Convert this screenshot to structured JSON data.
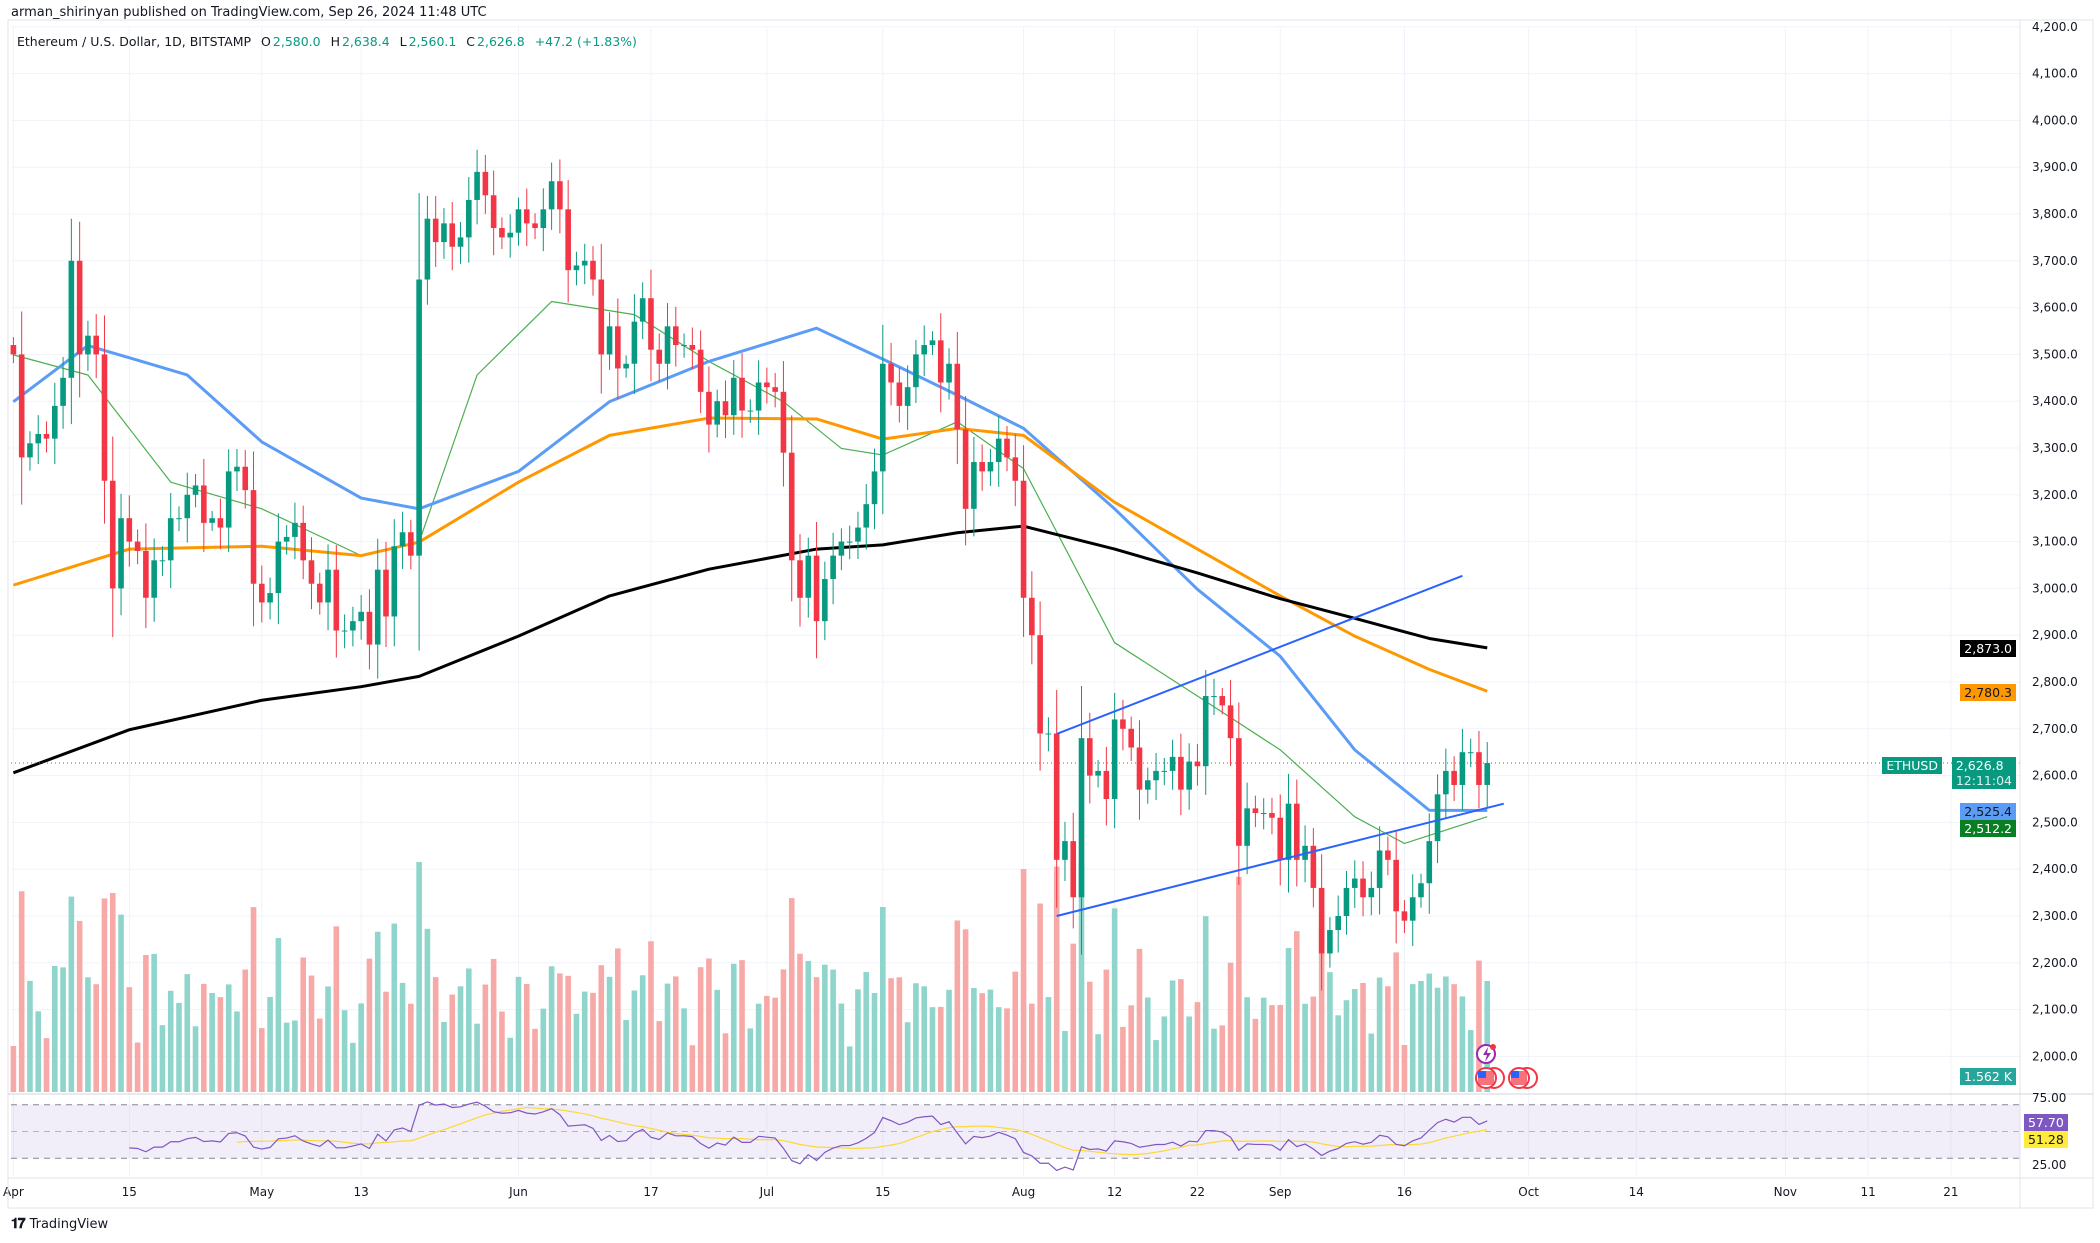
{
  "header": {
    "published": "arman_shirinyan published on TradingView.com, Sep 26, 2024 11:48 UTC"
  },
  "legend": {
    "symbol": "Ethereum / U.S. Dollar, 1D, BITSTAMP",
    "o_label": "O",
    "o": "2,580.0",
    "h_label": "H",
    "h": "2,638.4",
    "l_label": "L",
    "l": "2,560.1",
    "c_label": "C",
    "c": "2,626.8",
    "change": "+47.2 (+1.83%)"
  },
  "footer": {
    "brand": "TradingView",
    "logo": "TV"
  },
  "colors": {
    "up": "#089981",
    "down": "#f23645",
    "ma20": "#4caf50",
    "ma50": "#5b9cf6",
    "ma100": "#ff9800",
    "ma200": "#000000",
    "trend": "#2962ff",
    "rsi": "#7e57c2",
    "rsi_ma": "#fdd835"
  },
  "price_tags": {
    "ma200": "2,873.0",
    "ma100": "2,780.3",
    "symbol": "ETHUSD",
    "last": "2,626.8",
    "countdown": "12:11:04",
    "ma50": "2,525.4",
    "ma20": "2,512.2",
    "volume": "1.562 K",
    "rsi": "57.70",
    "rsi_ma": "51.28"
  },
  "chart_data": {
    "type": "candlestick",
    "symbol": "ETHUSD",
    "timeframe": "1D",
    "start_date": "2024-04-01",
    "closes": [
      3500,
      3280,
      3310,
      3330,
      3320,
      3390,
      3450,
      3700,
      3500,
      3540,
      3500,
      3230,
      3000,
      3150,
      3100,
      3080,
      2980,
      3060,
      3060,
      3150,
      3150,
      3200,
      3220,
      3140,
      3150,
      3130,
      3250,
      3260,
      3210,
      3010,
      2970,
      2990,
      3100,
      3110,
      3140,
      3060,
      3010,
      2970,
      3040,
      2910,
      2910,
      2930,
      2950,
      2880,
      3040,
      2940,
      3090,
      3120,
      3070,
      3660,
      3790,
      3740,
      3780,
      3730,
      3750,
      3830,
      3890,
      3840,
      3770,
      3750,
      3760,
      3810,
      3780,
      3770,
      3810,
      3870,
      3810,
      3680,
      3690,
      3700,
      3660,
      3500,
      3560,
      3470,
      3480,
      3570,
      3620,
      3510,
      3480,
      3560,
      3520,
      3520,
      3510,
      3420,
      3350,
      3400,
      3370,
      3450,
      3380,
      3380,
      3440,
      3430,
      3420,
      3290,
      3060,
      2980,
      3070,
      2930,
      3020,
      3070,
      3100,
      3100,
      3130,
      3180,
      3250,
      3480,
      3440,
      3390,
      3430,
      3500,
      3520,
      3530,
      3440,
      3480,
      3340,
      3170,
      3270,
      3250,
      3270,
      3320,
      3280,
      3230,
      2980,
      2900,
      2690,
      2690,
      2420,
      2460,
      2340,
      2680,
      2600,
      2610,
      2550,
      2720,
      2700,
      2660,
      2570,
      2590,
      2610,
      2610,
      2640,
      2570,
      2630,
      2620,
      2770,
      2770,
      2750,
      2680,
      2450,
      2530,
      2520,
      2520,
      2510,
      2420,
      2540,
      2420,
      2450,
      2360,
      2220,
      2270,
      2300,
      2360,
      2380,
      2340,
      2360,
      2440,
      2420,
      2310,
      2290,
      2340,
      2370,
      2460,
      2560,
      2610,
      2580,
      2650,
      2650,
      2580,
      2626.8
    ],
    "moving_averages": [
      {
        "name": "SMA 20",
        "color": "#4caf50",
        "points": [
          [
            "2024-04-01",
            3499
          ],
          [
            "2024-04-10",
            3456
          ],
          [
            "2024-04-20",
            3227
          ],
          [
            "2024-05-01",
            3170
          ],
          [
            "2024-05-13",
            3070
          ],
          [
            "2024-05-20",
            3099
          ],
          [
            "2024-05-27",
            3456
          ],
          [
            "2024-06-05",
            3613
          ],
          [
            "2024-06-15",
            3585
          ],
          [
            "2024-06-24",
            3485
          ],
          [
            "2024-07-03",
            3399
          ],
          [
            "2024-07-10",
            3299
          ],
          [
            "2024-07-15",
            3285
          ],
          [
            "2024-07-24",
            3356
          ],
          [
            "2024-08-01",
            3256
          ],
          [
            "2024-08-12",
            2884
          ],
          [
            "2024-08-22",
            2770
          ],
          [
            "2024-09-01",
            2655
          ],
          [
            "2024-09-10",
            2512
          ],
          [
            "2024-09-16",
            2455
          ],
          [
            "2024-09-26",
            2512.2
          ]
        ]
      },
      {
        "name": "MA 50",
        "color": "#5b9cf6",
        "points": [
          [
            "2024-04-01",
            3399
          ],
          [
            "2024-04-10",
            3519
          ],
          [
            "2024-04-22",
            3456
          ],
          [
            "2024-05-01",
            3313
          ],
          [
            "2024-05-13",
            3193
          ],
          [
            "2024-05-20",
            3170
          ],
          [
            "2024-06-01",
            3250
          ],
          [
            "2024-06-12",
            3399
          ],
          [
            "2024-06-24",
            3485
          ],
          [
            "2024-07-07",
            3556
          ],
          [
            "2024-07-15",
            3490
          ],
          [
            "2024-07-24",
            3413
          ],
          [
            "2024-08-01",
            3342
          ],
          [
            "2024-08-12",
            3170
          ],
          [
            "2024-08-22",
            2998
          ],
          [
            "2024-09-01",
            2855
          ],
          [
            "2024-09-10",
            2655
          ],
          [
            "2024-09-19",
            2526
          ],
          [
            "2024-09-26",
            2525.4
          ]
        ]
      },
      {
        "name": "MA 100",
        "color": "#ff9800",
        "points": [
          [
            "2024-04-01",
            3007
          ],
          [
            "2024-04-15",
            3084
          ],
          [
            "2024-05-01",
            3090
          ],
          [
            "2024-05-13",
            3070
          ],
          [
            "2024-05-20",
            3099
          ],
          [
            "2024-06-01",
            3227
          ],
          [
            "2024-06-12",
            3327
          ],
          [
            "2024-06-24",
            3364
          ],
          [
            "2024-07-07",
            3362
          ],
          [
            "2024-07-15",
            3319
          ],
          [
            "2024-07-24",
            3342
          ],
          [
            "2024-08-01",
            3327
          ],
          [
            "2024-08-12",
            3184
          ],
          [
            "2024-08-22",
            3084
          ],
          [
            "2024-09-01",
            2984
          ],
          [
            "2024-09-10",
            2898
          ],
          [
            "2024-09-19",
            2827
          ],
          [
            "2024-09-26",
            2780.3
          ]
        ]
      },
      {
        "name": "MA 200",
        "color": "#000000",
        "points": [
          [
            "2024-04-01",
            2606
          ],
          [
            "2024-04-15",
            2698
          ],
          [
            "2024-05-01",
            2761
          ],
          [
            "2024-05-13",
            2790
          ],
          [
            "2024-05-20",
            2812
          ],
          [
            "2024-06-01",
            2898
          ],
          [
            "2024-06-12",
            2984
          ],
          [
            "2024-06-24",
            3041
          ],
          [
            "2024-07-07",
            3084
          ],
          [
            "2024-07-15",
            3093
          ],
          [
            "2024-07-24",
            3119
          ],
          [
            "2024-08-01",
            3133
          ],
          [
            "2024-08-12",
            3084
          ],
          [
            "2024-08-22",
            3033
          ],
          [
            "2024-09-01",
            2978
          ],
          [
            "2024-09-10",
            2936
          ],
          [
            "2024-09-19",
            2893
          ],
          [
            "2024-09-26",
            2873
          ]
        ]
      }
    ],
    "trendlines": [
      {
        "name": "upper",
        "from": [
          "2024-08-05",
          2689
        ],
        "to": [
          "2024-09-23",
          3027
        ]
      },
      {
        "name": "lower",
        "from": [
          "2024-08-05",
          2300
        ],
        "to": [
          "2024-09-28",
          2540
        ]
      }
    ],
    "y_ticks": [
      "2,000.0",
      "2,100.0",
      "2,200.0",
      "2,300.0",
      "2,400.0",
      "2,500.0",
      "2,600.0",
      "2,700.0",
      "2,800.0",
      "2,900.0",
      "3,000.0",
      "3,100.0",
      "3,200.0",
      "3,300.0",
      "3,400.0",
      "3,500.0",
      "3,600.0",
      "3,700.0",
      "3,800.0",
      "3,900.0",
      "4,000.0",
      "4,100.0",
      "4,200.0"
    ],
    "ylim": [
      2000,
      4200
    ],
    "x_ticks": [
      [
        "Apr",
        "2024-04-01"
      ],
      [
        "15",
        "2024-04-15"
      ],
      [
        "May",
        "2024-05-01"
      ],
      [
        "13",
        "2024-05-13"
      ],
      [
        "Jun",
        "2024-06-01"
      ],
      [
        "17",
        "2024-06-17"
      ],
      [
        "Jul",
        "2024-07-01"
      ],
      [
        "15",
        "2024-07-15"
      ],
      [
        "Aug",
        "2024-08-01"
      ],
      [
        "12",
        "2024-08-12"
      ],
      [
        "22",
        "2024-08-22"
      ],
      [
        "Sep",
        "2024-09-01"
      ],
      [
        "16",
        "2024-09-16"
      ],
      [
        "Oct",
        "2024-10-01"
      ],
      [
        "14",
        "2024-10-14"
      ],
      [
        "Nov",
        "2024-11-01"
      ],
      [
        "11",
        "2024-11-11"
      ],
      [
        "21",
        "2024-11-21"
      ]
    ],
    "rsi": {
      "period": 14,
      "ma_period": 14,
      "ticks": [
        "75.00",
        "25.00"
      ],
      "bands": [
        70,
        50,
        30
      ]
    }
  }
}
